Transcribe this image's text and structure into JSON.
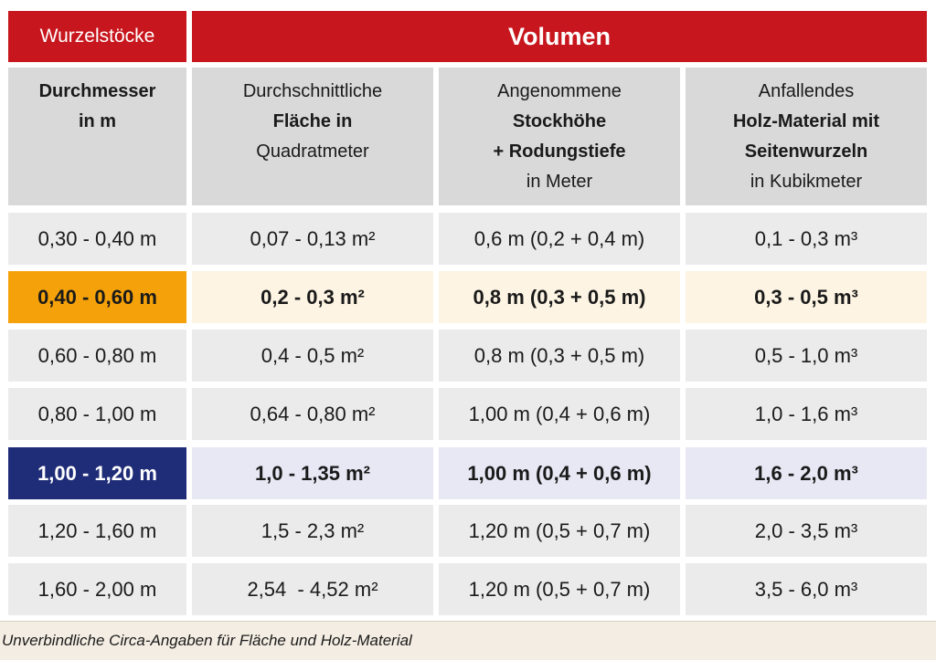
{
  "header": {
    "col1_label": "Wurzelstöcke",
    "span_label": "Volumen"
  },
  "subheader": {
    "col1": [
      "Durchmesser",
      "in m"
    ],
    "col2": [
      "Durchschnittliche",
      "Fläche in",
      "Quadratmeter"
    ],
    "col3": [
      "Angenommene",
      "Stockhöhe",
      "+ Rodungstiefe",
      "in Meter"
    ],
    "col4": [
      "Anfallendes",
      "Holz-Material mit",
      "Seitenwurzeln",
      "in Kubikmeter"
    ]
  },
  "rows": [
    {
      "diameter": "0,30 - 0,40 m",
      "area": "0,07 - 0,13 m²",
      "height": "0,6 m (0,2 + 0,4 m)",
      "volume": "0,1 - 0,3 m³",
      "highlight": "none"
    },
    {
      "diameter": "0,40 - 0,60 m",
      "area": "0,2 - 0,3 m²",
      "height": "0,8 m (0,3 + 0,5 m)",
      "volume": "0,3 - 0,5 m³",
      "highlight": "orange"
    },
    {
      "diameter": "0,60 - 0,80 m",
      "area": "0,4 - 0,5 m²",
      "height": "0,8 m (0,3 + 0,5 m)",
      "volume": "0,5 - 1,0 m³",
      "highlight": "none"
    },
    {
      "diameter": "0,80 - 1,00 m",
      "area": "0,64 - 0,80 m²",
      "height": "1,00 m (0,4 + 0,6 m)",
      "volume": "1,0 - 1,6 m³",
      "highlight": "none"
    },
    {
      "diameter": "1,00 - 1,20 m",
      "area": "1,0 - 1,35 m²",
      "height": "1,00 m (0,4 + 0,6 m)",
      "volume": "1,6 - 2,0 m³",
      "highlight": "blue"
    },
    {
      "diameter": "1,20 - 1,60 m",
      "area": "1,5 - 2,3 m²",
      "height": "1,20 m (0,5 + 0,7 m)",
      "volume": "2,0 - 3,5 m³",
      "highlight": "none"
    },
    {
      "diameter": "1,60 - 2,00 m",
      "area": "2,54  - 4,52 m²",
      "height": "1,20 m (0,5 + 0,7 m)",
      "volume": "3,5 - 6,0 m³",
      "highlight": "none"
    }
  ],
  "footnote": "Unverbindliche Circa-Angaben für Fläche und Holz-Material",
  "colors": {
    "header_red": "#c7161d",
    "orange": "#f5a20a",
    "orange_tint": "#fdf4e3",
    "navy": "#1f2d78",
    "blue_tint": "#e8e8f5",
    "grey_cell": "#ebebeb",
    "header_grey": "#d9d9d9"
  }
}
